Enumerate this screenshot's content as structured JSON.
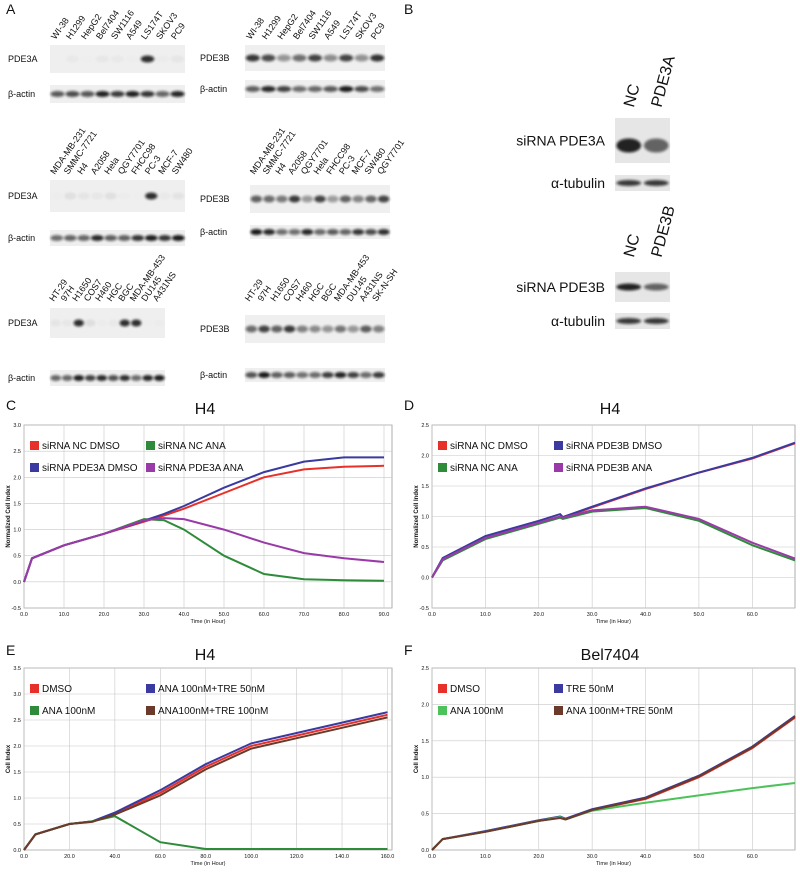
{
  "panel_labels": [
    "A",
    "B",
    "C",
    "D",
    "E",
    "F"
  ],
  "blots_a": [
    {
      "lanes": [
        "WI-38",
        "H1299",
        "HepG2",
        "Bel7404",
        "SW1116",
        "A549",
        "LS174T",
        "SKOV3",
        "PC9"
      ],
      "target": "PDE3A",
      "control": "β-actin"
    },
    {
      "lanes": [
        "WI-38",
        "H1299",
        "HepG2",
        "Bel7404",
        "SW1116",
        "A549",
        "LS174T",
        "SKOV3",
        "PC9"
      ],
      "target": "PDE3B",
      "control": "β-actin"
    },
    {
      "lanes": [
        "MDA-MB-231",
        "SMMC-7721",
        "H4",
        "A2058",
        "Hela",
        "QGY7701",
        "FHCC98",
        "PC-3",
        "MCF-7",
        "SW480"
      ],
      "target": "PDE3A",
      "control": "β-actin"
    },
    {
      "lanes": [
        "MDA-MB-231",
        "SMMC-7721",
        "H4",
        "A2058",
        "QGY7701",
        "Hela",
        "FHCC98",
        "PC-3",
        "MCF-7",
        "SW480",
        "QGY7701"
      ],
      "target": "PDE3B",
      "control": "β-actin"
    },
    {
      "lanes": [
        "HT-29",
        "97H",
        "H1650",
        "COS7",
        "H460",
        "HGC",
        "BGC",
        "MDA-MB-453",
        "DU145",
        "A431NS"
      ],
      "target": "PDE3A",
      "control": "β-actin"
    },
    {
      "lanes": [
        "HT-29",
        "97H",
        "H1650",
        "COS7",
        "H460",
        "HGC",
        "BGC",
        "MDA-MB-453",
        "DU145",
        "A431NS",
        "SK-N-SH"
      ],
      "target": "PDE3B",
      "control": "β-actin"
    }
  ],
  "blots_b": [
    {
      "lanes": [
        "NC",
        "PDE3A"
      ],
      "target": "siRNA PDE3A",
      "control": "α-tubulin"
    },
    {
      "lanes": [
        "NC",
        "PDE3B"
      ],
      "target": "siRNA PDE3B",
      "control": "α-tubulin"
    }
  ],
  "chart_data": [
    {
      "type": "line",
      "title": "H4",
      "y_label": "Normalized Cell Index",
      "x_label": "Time (in Hour)",
      "x": [
        0,
        2,
        10,
        20,
        30,
        35,
        40,
        50,
        60,
        70,
        80,
        90
      ],
      "xlim": [
        0,
        92
      ],
      "ylim": [
        -0.5,
        3.0
      ],
      "xticks": [
        {
          "value": 0,
          "label": "0.0"
        },
        {
          "value": 10,
          "label": "10.0"
        },
        {
          "value": 20,
          "label": "20.0"
        },
        {
          "value": 30,
          "label": "30.0"
        },
        {
          "value": 40,
          "label": "40.0"
        },
        {
          "value": 50,
          "label": "50.0"
        },
        {
          "value": 60,
          "label": "60.0"
        },
        {
          "value": 70,
          "label": "70.0"
        },
        {
          "value": 80,
          "label": "80.0"
        },
        {
          "value": 90,
          "label": "90.0"
        }
      ],
      "yticks": [
        {
          "value": -0.5,
          "label": "-0.5"
        },
        {
          "value": 0,
          "label": "0.0"
        },
        {
          "value": 0.5,
          "label": "0.5"
        },
        {
          "value": 1,
          "label": "1.0"
        },
        {
          "value": 1.5,
          "label": "1.5"
        },
        {
          "value": 2,
          "label": "2.0"
        },
        {
          "value": 2.5,
          "label": "2.5"
        },
        {
          "value": 3,
          "label": "3.0"
        }
      ],
      "grid": true,
      "series": [
        {
          "name": "siRNA NC DMSO",
          "color": "#e8302a",
          "values": [
            0,
            0.45,
            0.7,
            0.92,
            1.15,
            1.27,
            1.4,
            1.7,
            2.0,
            2.15,
            2.2,
            2.22
          ]
        },
        {
          "name": "siRNA NC ANA",
          "color": "#2e8b3a",
          "values": [
            0,
            0.45,
            0.7,
            0.92,
            1.2,
            1.18,
            1.0,
            0.5,
            0.15,
            0.05,
            0.03,
            0.02
          ]
        },
        {
          "name": "siRNA PDE3A DMSO",
          "color": "#3a3aa0",
          "values": [
            0,
            0.45,
            0.7,
            0.92,
            1.17,
            1.3,
            1.45,
            1.8,
            2.1,
            2.3,
            2.38,
            2.38
          ]
        },
        {
          "name": "siRNA PDE3A ANA",
          "color": "#9a3aa8",
          "values": [
            0,
            0.45,
            0.7,
            0.92,
            1.18,
            1.22,
            1.2,
            1.0,
            0.75,
            0.55,
            0.45,
            0.38
          ]
        }
      ]
    },
    {
      "type": "line",
      "title": "H4",
      "y_label": "Normalized Cell Index",
      "x_label": "Time (in Hour)",
      "x": [
        0,
        2,
        10,
        20,
        24,
        24.5,
        30,
        40,
        50,
        60,
        68
      ],
      "xlim": [
        0,
        68
      ],
      "ylim": [
        -0.5,
        2.5
      ],
      "xticks": [
        {
          "value": 0,
          "label": "0.0"
        },
        {
          "value": 10,
          "label": "10.0"
        },
        {
          "value": 20,
          "label": "20.0"
        },
        {
          "value": 30,
          "label": "30.0"
        },
        {
          "value": 40,
          "label": "40.0"
        },
        {
          "value": 50,
          "label": "50.0"
        },
        {
          "value": 60,
          "label": "60.0"
        }
      ],
      "yticks": [
        {
          "value": -0.5,
          "label": "-0.5"
        },
        {
          "value": 0,
          "label": "0.0"
        },
        {
          "value": 0.5,
          "label": "0.5"
        },
        {
          "value": 1,
          "label": "1.0"
        },
        {
          "value": 1.5,
          "label": "1.5"
        },
        {
          "value": 2,
          "label": "2.0"
        },
        {
          "value": 2.5,
          "label": "2.5"
        }
      ],
      "grid": true,
      "series": [
        {
          "name": "siRNA NC DMSO",
          "color": "#e8302a",
          "values": [
            0,
            0.3,
            0.65,
            0.9,
            1.0,
            0.98,
            1.15,
            1.45,
            1.72,
            1.95,
            2.2
          ]
        },
        {
          "name": "siRNA PDE3B DMSO",
          "color": "#3a3aa0",
          "values": [
            0,
            0.32,
            0.68,
            0.93,
            1.04,
            0.99,
            1.16,
            1.46,
            1.72,
            1.96,
            2.21
          ]
        },
        {
          "name": "siRNA NC ANA",
          "color": "#2e8b3a",
          "values": [
            0,
            0.28,
            0.63,
            0.88,
            0.98,
            0.96,
            1.08,
            1.14,
            0.93,
            0.53,
            0.28
          ]
        },
        {
          "name": "siRNA PDE3B ANA",
          "color": "#9a3aa8",
          "values": [
            0,
            0.3,
            0.65,
            0.9,
            1.0,
            0.98,
            1.1,
            1.16,
            0.96,
            0.57,
            0.31
          ]
        }
      ]
    },
    {
      "type": "line",
      "title": "H4",
      "y_label": "Cell Index",
      "x_label": "Time (in Hour)",
      "x": [
        0,
        5,
        20,
        30,
        40,
        60,
        80,
        100,
        120,
        140,
        160
      ],
      "xlim": [
        0,
        162
      ],
      "ylim": [
        0,
        3.5
      ],
      "xticks": [
        {
          "value": 0,
          "label": "0.0"
        },
        {
          "value": 20,
          "label": "20.0"
        },
        {
          "value": 40,
          "label": "40.0"
        },
        {
          "value": 60,
          "label": "60.0"
        },
        {
          "value": 80,
          "label": "80.0"
        },
        {
          "value": 100,
          "label": "100.0"
        },
        {
          "value": 120,
          "label": "120.0"
        },
        {
          "value": 140,
          "label": "140.0"
        },
        {
          "value": 160,
          "label": "160.0"
        }
      ],
      "yticks": [
        {
          "value": 0,
          "label": "0.0"
        },
        {
          "value": 0.5,
          "label": "0.5"
        },
        {
          "value": 1,
          "label": "1.0"
        },
        {
          "value": 1.5,
          "label": "1.5"
        },
        {
          "value": 2,
          "label": "2.0"
        },
        {
          "value": 2.5,
          "label": "2.5"
        },
        {
          "value": 3,
          "label": "3.0"
        },
        {
          "value": 3.5,
          "label": "3.5"
        }
      ],
      "grid": true,
      "series": [
        {
          "name": "DMSO",
          "color": "#e8302a",
          "values": [
            0,
            0.3,
            0.5,
            0.55,
            0.7,
            1.1,
            1.6,
            2.0,
            2.2,
            2.4,
            2.6
          ]
        },
        {
          "name": "ANA 100nM+TRE 50nM",
          "color": "#3a3aa0",
          "values": [
            0,
            0.3,
            0.5,
            0.55,
            0.72,
            1.15,
            1.65,
            2.05,
            2.25,
            2.45,
            2.65
          ]
        },
        {
          "name": "ANA 100nM",
          "color": "#2e8b3a",
          "values": [
            0,
            0.3,
            0.5,
            0.55,
            0.65,
            0.15,
            0.02,
            0.02,
            0.02,
            0.02,
            0.02
          ]
        },
        {
          "name": "ANA100nM+TRE 100nM",
          "color": "#6b3a2a",
          "values": [
            0,
            0.3,
            0.5,
            0.54,
            0.68,
            1.05,
            1.55,
            1.95,
            2.15,
            2.35,
            2.55
          ]
        }
      ]
    },
    {
      "type": "line",
      "title": "Bel7404",
      "y_label": "Cell Index",
      "x_label": "Time (in Hour)",
      "x": [
        0,
        2,
        10,
        20,
        24,
        25,
        30,
        40,
        50,
        60,
        68
      ],
      "xlim": [
        0,
        68
      ],
      "ylim": [
        0,
        2.5
      ],
      "xticks": [
        {
          "value": 0,
          "label": "0.0"
        },
        {
          "value": 10,
          "label": "10.0"
        },
        {
          "value": 20,
          "label": "20.0"
        },
        {
          "value": 30,
          "label": "30.0"
        },
        {
          "value": 40,
          "label": "40.0"
        },
        {
          "value": 50,
          "label": "50.0"
        },
        {
          "value": 60,
          "label": "60.0"
        }
      ],
      "yticks": [
        {
          "value": 0,
          "label": "0.0"
        },
        {
          "value": 0.5,
          "label": "0.5"
        },
        {
          "value": 1,
          "label": "1.0"
        },
        {
          "value": 1.5,
          "label": "1.5"
        },
        {
          "value": 2,
          "label": "2.0"
        },
        {
          "value": 2.5,
          "label": "2.5"
        }
      ],
      "grid": true,
      "series": [
        {
          "name": "DMSO",
          "color": "#e8302a",
          "values": [
            0,
            0.15,
            0.25,
            0.4,
            0.45,
            0.42,
            0.55,
            0.7,
            1.0,
            1.4,
            1.82
          ]
        },
        {
          "name": "TRE 50nM",
          "color": "#3a3aa0",
          "values": [
            0,
            0.15,
            0.26,
            0.41,
            0.46,
            0.43,
            0.56,
            0.72,
            1.02,
            1.42,
            1.84
          ]
        },
        {
          "name": "ANA 100nM",
          "color": "#4ec25a",
          "values": [
            0,
            0.15,
            0.25,
            0.4,
            0.45,
            0.42,
            0.54,
            0.65,
            0.75,
            0.85,
            0.92
          ]
        },
        {
          "name": "ANA 100nM+TRE 50nM",
          "color": "#6b3a2a",
          "values": [
            0,
            0.15,
            0.25,
            0.4,
            0.44,
            0.42,
            0.55,
            0.71,
            1.01,
            1.41,
            1.83
          ]
        }
      ]
    }
  ]
}
